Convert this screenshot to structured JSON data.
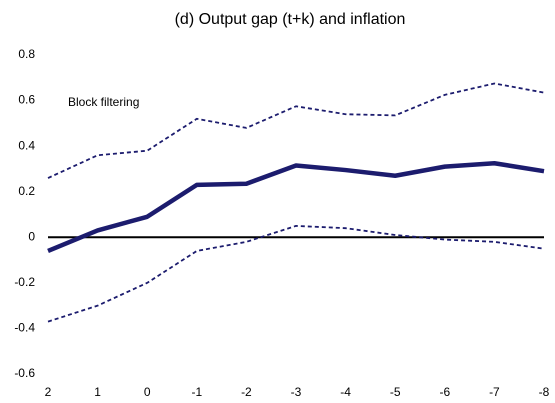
{
  "chart_data": {
    "type": "line",
    "title": "(d) Output gap (t+k) and inflation",
    "annotation": "Block filtering",
    "x": [
      2,
      1,
      0,
      -1,
      -2,
      -3,
      -4,
      -5,
      -6,
      -7,
      -8
    ],
    "xlim": [
      2,
      -8
    ],
    "xticks": [
      2,
      1,
      0,
      -1,
      -2,
      -3,
      -4,
      -5,
      -6,
      -7,
      -8
    ],
    "ylim": [
      -0.6,
      0.8
    ],
    "yticks": [
      0.8,
      0.6,
      0.4,
      0.2,
      0,
      -0.2,
      -0.4,
      -0.6
    ],
    "zero_line": true,
    "series": [
      {
        "color": "#1c1c6e",
        "style": "solid",
        "values": [
          -0.06,
          0.03,
          0.09,
          0.23,
          0.235,
          0.315,
          0.295,
          0.27,
          0.31,
          0.325,
          0.29
        ]
      },
      {
        "color": "#1c1c6e",
        "style": "dashed",
        "values": [
          0.26,
          0.36,
          0.38,
          0.52,
          0.48,
          0.575,
          0.54,
          0.535,
          0.625,
          0.675,
          0.635
        ]
      },
      {
        "color": "#1c1c6e",
        "style": "dashed",
        "values": [
          -0.37,
          -0.3,
          -0.2,
          -0.06,
          -0.02,
          0.05,
          0.04,
          0.01,
          -0.01,
          -0.02,
          -0.05
        ]
      }
    ]
  }
}
